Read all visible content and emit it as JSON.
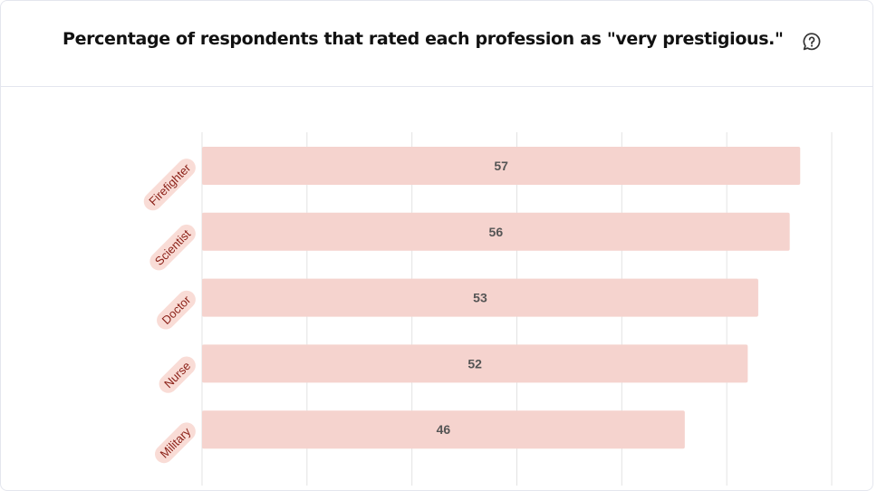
{
  "title": "Percentage of respondents that rated each profession as \"very prestigious.\"",
  "help_icon": "help-bubble-icon",
  "colors": {
    "bar": "#f5d3ce",
    "label_bg": "#f9dcd6",
    "label_text": "#8a1f16",
    "value_text": "#555555",
    "grid": "#e3e3e3"
  },
  "chart_data": {
    "type": "bar",
    "orientation": "horizontal",
    "categories": [
      "Firefighter",
      "Scientist",
      "Doctor",
      "Nurse",
      "Military"
    ],
    "values": [
      57,
      56,
      53,
      52,
      46
    ],
    "xlim": [
      0,
      60
    ],
    "grid": true
  }
}
